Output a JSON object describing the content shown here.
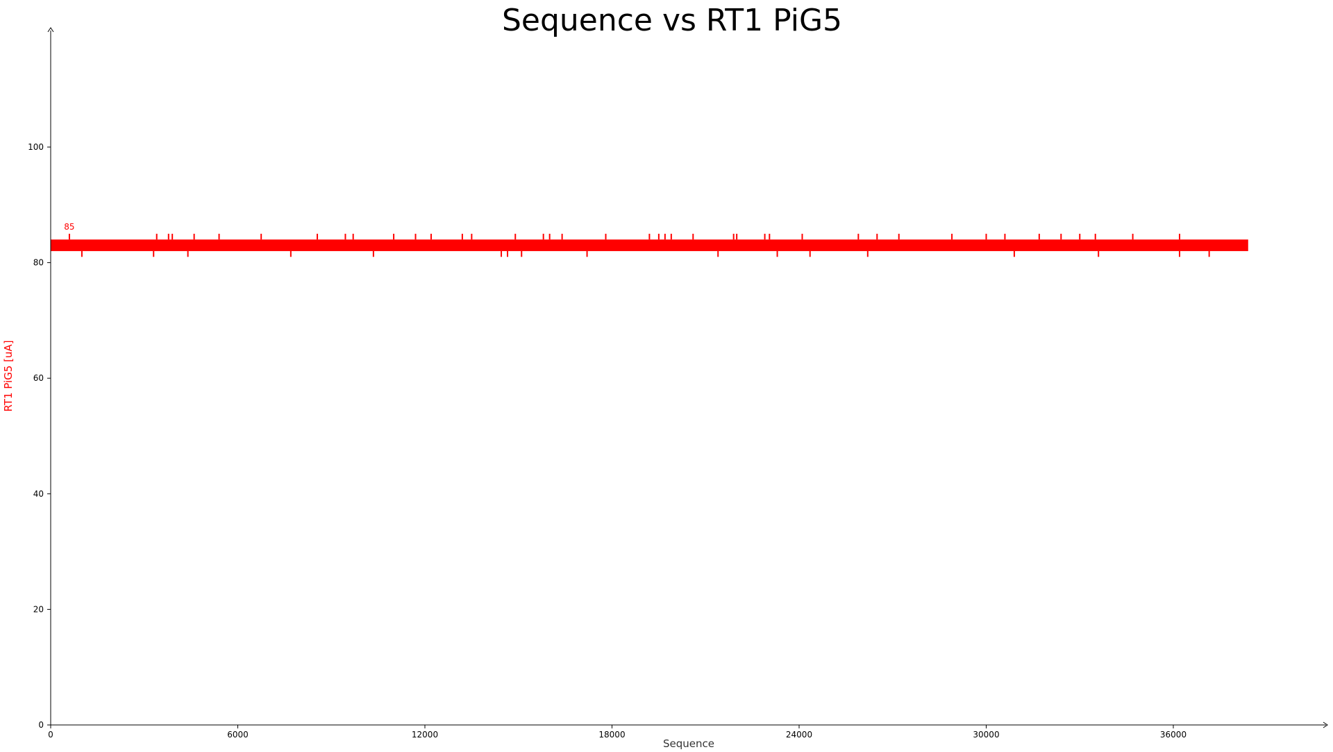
{
  "chart_data": {
    "type": "line",
    "title": "Sequence vs RT1 PiG5",
    "xlabel": "Sequence",
    "ylabel": "RT1 PiG5 [uA]",
    "xlim": [
      0,
      38400
    ],
    "ylim": [
      0,
      120
    ],
    "x_ticks": [
      0,
      6000,
      12000,
      18000,
      24000,
      30000,
      36000
    ],
    "x_tick_labels": [
      "0",
      "6000",
      "12000",
      "18000",
      "24000",
      "30000",
      "36000"
    ],
    "y_ticks": [
      0,
      20,
      40,
      60,
      80,
      100
    ],
    "y_tick_labels": [
      "0",
      "20",
      "40",
      "60",
      "80",
      "100"
    ],
    "grid": false,
    "legend": "none",
    "series": [
      {
        "color": "#ff0000",
        "band_low": 82,
        "band_high": 84,
        "spikes_up": [
          {
            "x": 600,
            "y": 85
          },
          {
            "x": 3400,
            "y": 85
          },
          {
            "x": 3780,
            "y": 85
          },
          {
            "x": 3900,
            "y": 85
          },
          {
            "x": 4600,
            "y": 85
          },
          {
            "x": 5400,
            "y": 85
          },
          {
            "x": 6750,
            "y": 85
          },
          {
            "x": 8550,
            "y": 85
          },
          {
            "x": 9450,
            "y": 85
          },
          {
            "x": 9700,
            "y": 85
          },
          {
            "x": 11000,
            "y": 85
          },
          {
            "x": 11700,
            "y": 85
          },
          {
            "x": 12200,
            "y": 85
          },
          {
            "x": 13200,
            "y": 85
          },
          {
            "x": 13500,
            "y": 85
          },
          {
            "x": 14900,
            "y": 85
          },
          {
            "x": 15800,
            "y": 85
          },
          {
            "x": 16000,
            "y": 85
          },
          {
            "x": 16400,
            "y": 85
          },
          {
            "x": 17800,
            "y": 85
          },
          {
            "x": 19200,
            "y": 85
          },
          {
            "x": 19500,
            "y": 85
          },
          {
            "x": 19700,
            "y": 85
          },
          {
            "x": 19900,
            "y": 85
          },
          {
            "x": 20600,
            "y": 85
          },
          {
            "x": 21900,
            "y": 85
          },
          {
            "x": 22000,
            "y": 85
          },
          {
            "x": 22900,
            "y": 85
          },
          {
            "x": 23050,
            "y": 85
          },
          {
            "x": 24100,
            "y": 85
          },
          {
            "x": 25900,
            "y": 85
          },
          {
            "x": 26500,
            "y": 85
          },
          {
            "x": 27200,
            "y": 85
          },
          {
            "x": 28900,
            "y": 85
          },
          {
            "x": 30000,
            "y": 85
          },
          {
            "x": 30600,
            "y": 85
          },
          {
            "x": 31700,
            "y": 85
          },
          {
            "x": 32400,
            "y": 85
          },
          {
            "x": 33000,
            "y": 85
          },
          {
            "x": 33500,
            "y": 85
          },
          {
            "x": 34700,
            "y": 85
          },
          {
            "x": 36200,
            "y": 85
          }
        ],
        "spikes_down": [
          {
            "x": 1000,
            "y": 81
          },
          {
            "x": 3300,
            "y": 81
          },
          {
            "x": 4400,
            "y": 81
          },
          {
            "x": 7700,
            "y": 81
          },
          {
            "x": 10350,
            "y": 81
          },
          {
            "x": 14450,
            "y": 81
          },
          {
            "x": 14650,
            "y": 81
          },
          {
            "x": 15100,
            "y": 81
          },
          {
            "x": 17200,
            "y": 81
          },
          {
            "x": 21400,
            "y": 81
          },
          {
            "x": 23300,
            "y": 81
          },
          {
            "x": 24350,
            "y": 81
          },
          {
            "x": 26200,
            "y": 81
          },
          {
            "x": 30900,
            "y": 81
          },
          {
            "x": 33600,
            "y": 81
          },
          {
            "x": 36200,
            "y": 81
          },
          {
            "x": 37150,
            "y": 81
          }
        ]
      }
    ],
    "annotations": [
      {
        "text": "85",
        "x": 600,
        "y": 85
      }
    ]
  }
}
